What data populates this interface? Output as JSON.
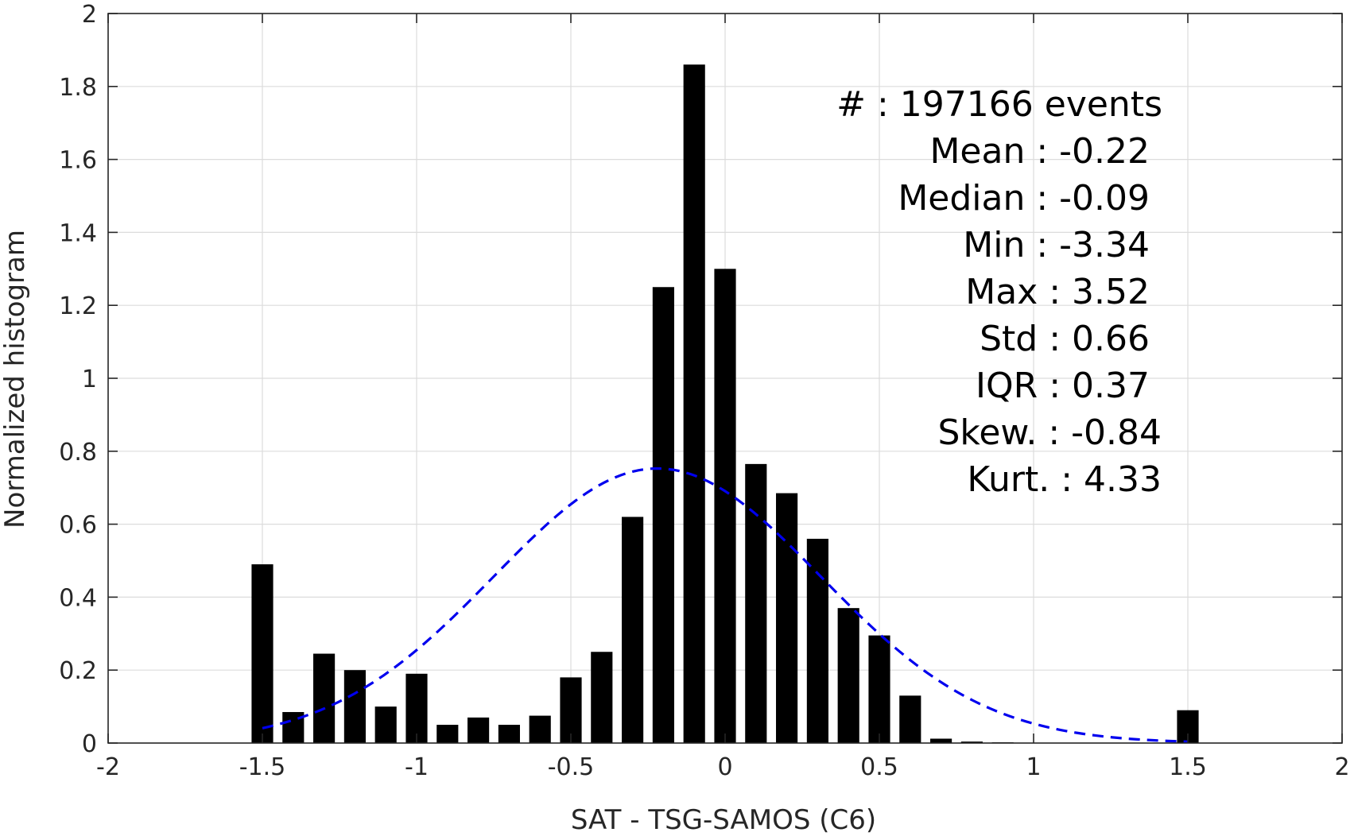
{
  "chart_data": {
    "type": "bar",
    "xlabel": "SAT - TSG-SAMOS (C6)",
    "ylabel": "Normalized histogram",
    "xlim": [
      -2,
      2
    ],
    "ylim": [
      0,
      2
    ],
    "x_ticks": [
      -2,
      -1.5,
      -1,
      -0.5,
      0,
      0.5,
      1,
      1.5,
      2
    ],
    "x_tick_labels": [
      "-2",
      "-1.5",
      "-1",
      "-0.5",
      "0",
      "0.5",
      "1",
      "1.5",
      "2"
    ],
    "y_ticks": [
      0,
      0.2,
      0.4,
      0.6,
      0.8,
      1,
      1.2,
      1.4,
      1.6,
      1.8,
      2
    ],
    "y_tick_labels": [
      "0",
      "0.2",
      "0.4",
      "0.6",
      "0.8",
      "1",
      "1.2",
      "1.4",
      "1.6",
      "1.8",
      "2"
    ],
    "grid": true,
    "bar_width": 0.07,
    "bars": {
      "x": [
        -1.5,
        -1.4,
        -1.3,
        -1.2,
        -1.1,
        -1.0,
        -0.9,
        -0.8,
        -0.7,
        -0.6,
        -0.5,
        -0.4,
        -0.3,
        -0.2,
        -0.1,
        0.0,
        0.1,
        0.2,
        0.3,
        0.4,
        0.5,
        0.6,
        0.7,
        0.8,
        0.9,
        1.0,
        1.1,
        1.2,
        1.3,
        1.4,
        1.5
      ],
      "values": [
        0.49,
        0.085,
        0.245,
        0.2,
        0.1,
        0.19,
        0.05,
        0.07,
        0.05,
        0.075,
        0.18,
        0.25,
        0.62,
        1.25,
        1.86,
        1.3,
        0.765,
        0.685,
        0.56,
        0.37,
        0.295,
        0.13,
        0.012,
        0.004,
        0.002,
        0.001,
        0.0,
        0.0,
        0.0,
        0.0,
        0.09
      ],
      "color": "#000000"
    },
    "fit_curve": {
      "style": "dashed",
      "color": "#0000ee",
      "mean": -0.22,
      "std": 0.53,
      "x_range": [
        -1.5,
        1.5
      ]
    },
    "annotations": [
      "#  : 197166 events",
      "Mean : -0.22",
      "Median : -0.09",
      "Min : -3.34",
      "Max : 3.52",
      "Std : 0.66",
      "IQR : 0.37",
      "Skew. : -0.84",
      "Kurt. : 4.33"
    ]
  }
}
